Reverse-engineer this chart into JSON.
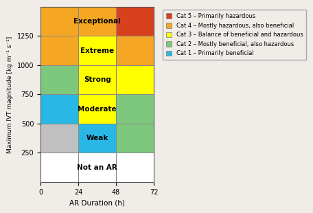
{
  "xlabel": "AR Duration (h)",
  "ylabel": "Maximum IVT magnitude [kg m⁻¹ s⁻¹]",
  "xlim": [
    0,
    72
  ],
  "ylim": [
    0,
    1500
  ],
  "xticks": [
    0,
    24,
    48,
    72
  ],
  "yticks": [
    250,
    500,
    750,
    1000,
    1250
  ],
  "col_edges": [
    0,
    24,
    48,
    72
  ],
  "row_edges": [
    0,
    250,
    500,
    750,
    1000,
    1250,
    1500
  ],
  "cells": [
    {
      "col": 0,
      "row": 0,
      "color": "#ffffff"
    },
    {
      "col": 1,
      "row": 0,
      "color": "#ffffff"
    },
    {
      "col": 2,
      "row": 0,
      "color": "#ffffff"
    },
    {
      "col": 0,
      "row": 1,
      "color": "#c0c0c0"
    },
    {
      "col": 1,
      "row": 1,
      "color": "#29b8e5"
    },
    {
      "col": 2,
      "row": 1,
      "color": "#7ec87e"
    },
    {
      "col": 0,
      "row": 2,
      "color": "#29b8e5"
    },
    {
      "col": 1,
      "row": 2,
      "color": "#ffff00"
    },
    {
      "col": 2,
      "row": 2,
      "color": "#7ec87e"
    },
    {
      "col": 0,
      "row": 3,
      "color": "#7ec87e"
    },
    {
      "col": 1,
      "row": 3,
      "color": "#ffff00"
    },
    {
      "col": 2,
      "row": 3,
      "color": "#ffff00"
    },
    {
      "col": 0,
      "row": 4,
      "color": "#f5a623"
    },
    {
      "col": 1,
      "row": 4,
      "color": "#ffff00"
    },
    {
      "col": 2,
      "row": 4,
      "color": "#f5a623"
    },
    {
      "col": 0,
      "row": 5,
      "color": "#f5a623"
    },
    {
      "col": 1,
      "row": 5,
      "color": "#f5a623"
    },
    {
      "col": 2,
      "row": 5,
      "color": "#d9411e"
    }
  ],
  "cell_labels": [
    {
      "col": 1,
      "row": 0,
      "text": "Not an AR",
      "fontsize": 7.5,
      "fontweight": "bold"
    },
    {
      "col": 1,
      "row": 1,
      "text": "Weak",
      "fontsize": 7.5,
      "fontweight": "bold"
    },
    {
      "col": 1,
      "row": 2,
      "text": "Moderate",
      "fontsize": 7.5,
      "fontweight": "bold"
    },
    {
      "col": 1,
      "row": 3,
      "text": "Strong",
      "fontsize": 7.5,
      "fontweight": "bold"
    },
    {
      "col": 1,
      "row": 4,
      "text": "Extreme",
      "fontsize": 7.5,
      "fontweight": "bold"
    },
    {
      "col": 1,
      "row": 5,
      "text": "Exceptional",
      "fontsize": 7.5,
      "fontweight": "bold"
    }
  ],
  "legend_items": [
    {
      "color": "#d9411e",
      "label": "Cat 5 – Primarily hazardous"
    },
    {
      "color": "#f5a623",
      "label": "Cat 4 – Mostly hazardous, also beneficial"
    },
    {
      "color": "#ffff00",
      "label": "Cat 3 – Balance of beneficial and hazardous"
    },
    {
      "color": "#7ec87e",
      "label": "Cat 2 – Mostly beneficial, also hazardous"
    },
    {
      "color": "#29b8e5",
      "label": "Cat 1 – Primarily beneficial"
    }
  ],
  "background_color": "#f0ede8",
  "grid_color": "#888888",
  "grid_linewidth": 0.7,
  "spine_color": "#555555"
}
